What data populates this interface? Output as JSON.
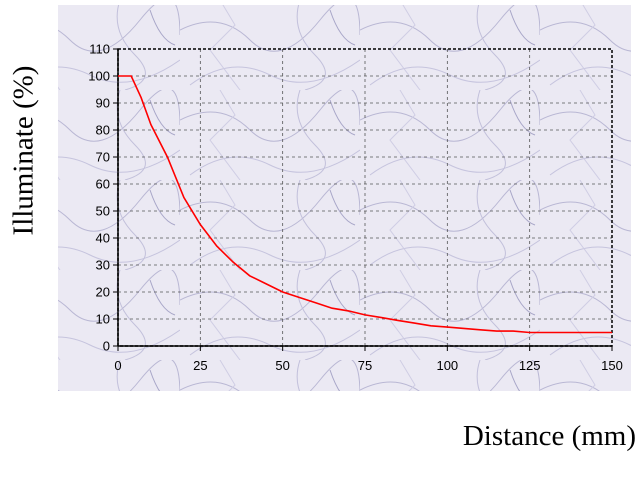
{
  "chart_data": {
    "type": "line",
    "xlabel": "Distance (mm)",
    "ylabel": "Illuminate (%)",
    "xlim": [
      0,
      150
    ],
    "ylim": [
      0,
      110
    ],
    "x_ticks": [
      "0",
      "25",
      "50",
      "75",
      "100",
      "125",
      "150"
    ],
    "y_ticks": [
      "0",
      "10",
      "20",
      "30",
      "40",
      "50",
      "60",
      "70",
      "80",
      "90",
      "100",
      "110"
    ],
    "grid": true,
    "series": [
      {
        "color": "#ff0000",
        "x": [
          0,
          4,
          7,
          10,
          15,
          20,
          25,
          30,
          35,
          40,
          45,
          50,
          55,
          60,
          65,
          70,
          75,
          80,
          85,
          90,
          95,
          100,
          105,
          110,
          115,
          120,
          125,
          130,
          140,
          150
        ],
        "y": [
          100,
          100,
          92,
          82,
          70,
          55,
          45,
          37,
          31,
          26,
          23,
          20,
          18,
          16,
          14,
          13,
          11.5,
          10.5,
          9.5,
          8.5,
          7.5,
          7,
          6.5,
          6,
          5.5,
          5.5,
          5,
          5,
          5,
          5
        ]
      }
    ]
  },
  "colors": {
    "line": "#ff0000",
    "background": "#ebe9f3",
    "veins": "#a8a6c8"
  }
}
